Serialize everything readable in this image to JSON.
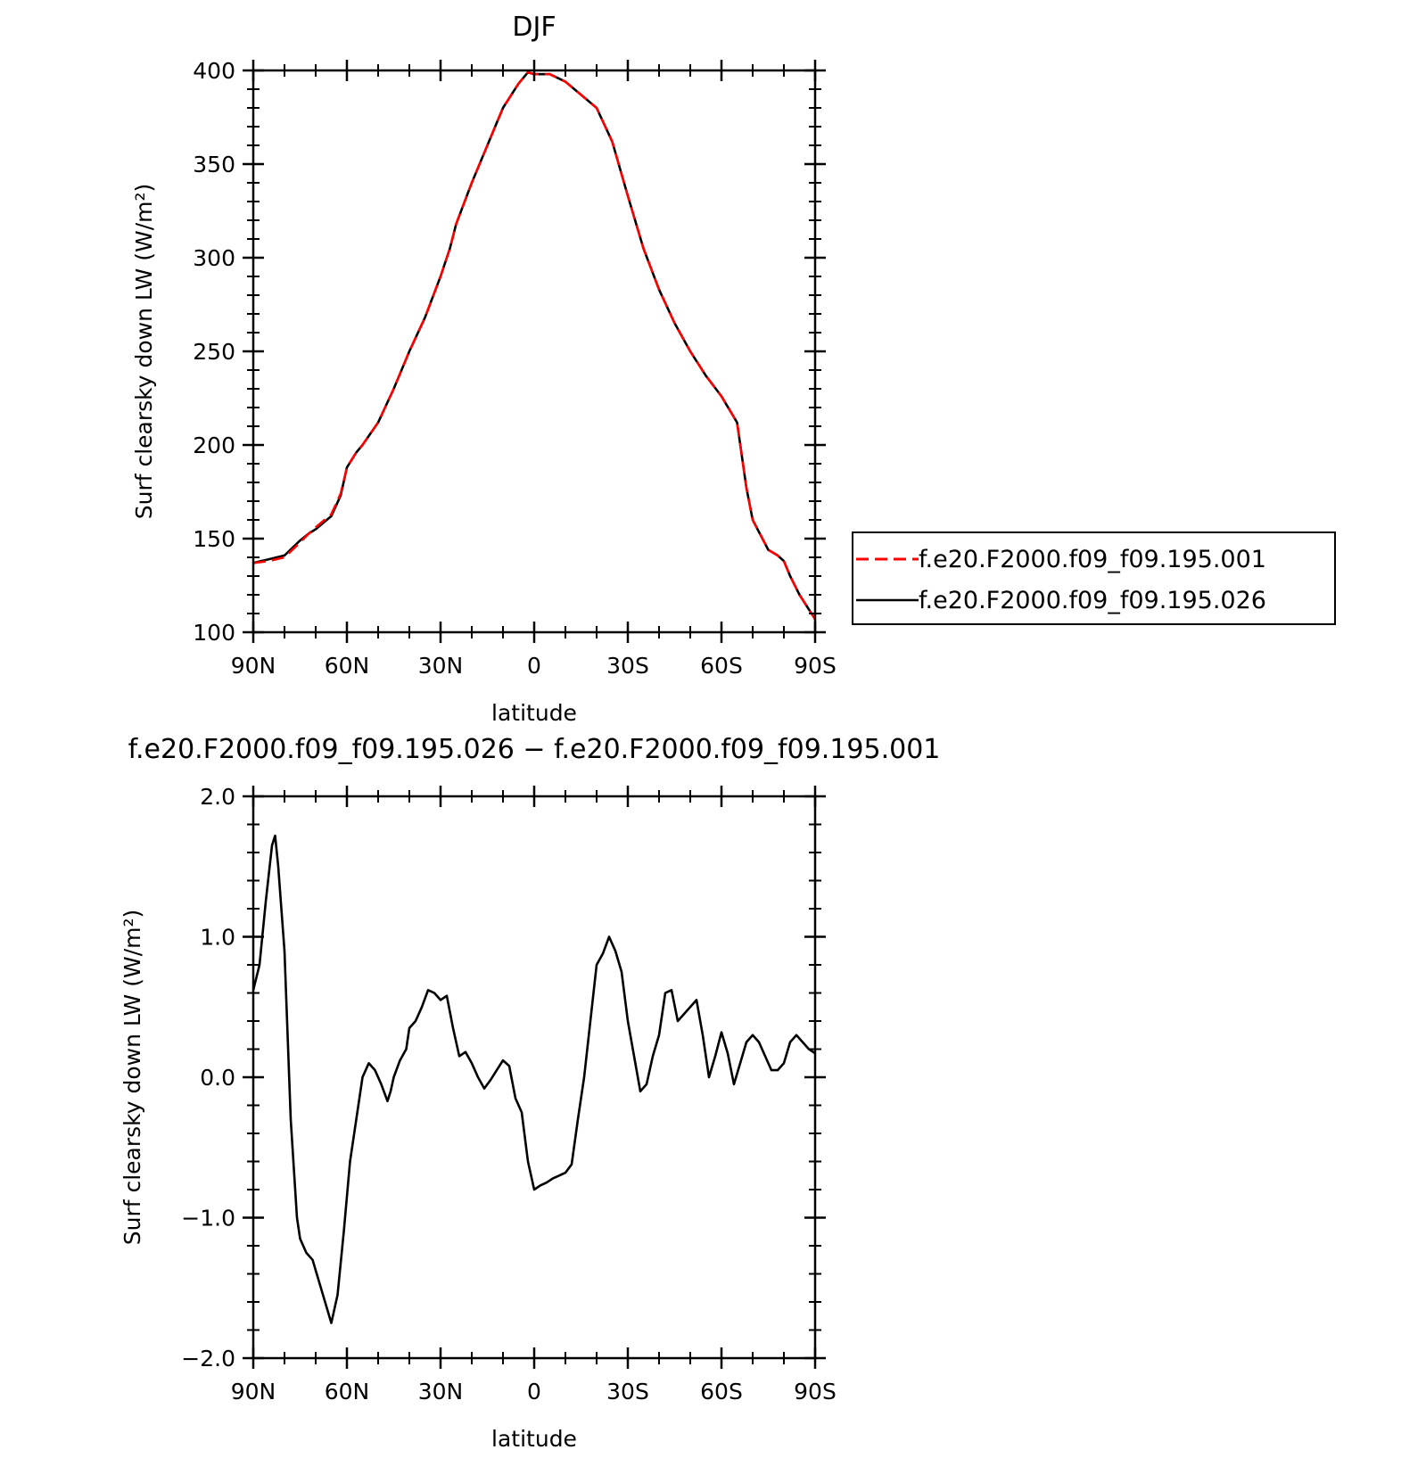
{
  "chart_data": [
    {
      "type": "line",
      "title": "DJF",
      "xlabel": "latitude",
      "ylabel": "Surf clearsky down LW (W/m²)",
      "xlim": [
        90,
        -90
      ],
      "ylim": [
        100,
        400
      ],
      "x_ticks": [
        90,
        60,
        30,
        0,
        -30,
        -60,
        -90
      ],
      "x_tick_labels": [
        "90N",
        "60N",
        "30N",
        "0",
        "30S",
        "60S",
        "90S"
      ],
      "y_ticks": [
        100,
        150,
        200,
        250,
        300,
        350,
        400
      ],
      "y_tick_labels": [
        "100",
        "150",
        "200",
        "250",
        "300",
        "350",
        "400"
      ],
      "grid": false,
      "legend_position": "right",
      "x": [
        90,
        85,
        80,
        75,
        72,
        70,
        65,
        62,
        60,
        57,
        55,
        50,
        45,
        40,
        35,
        30,
        27,
        25,
        20,
        15,
        12,
        10,
        5,
        2,
        0,
        -5,
        -10,
        -15,
        -20,
        -25,
        -30,
        -35,
        -40,
        -45,
        -50,
        -55,
        -60,
        -65,
        -68,
        -70,
        -75,
        -78,
        -80,
        -82,
        -85,
        -90
      ],
      "series": [
        {
          "name": "f.e20.F2000.f09_f09.195.001",
          "color": "#ff0000",
          "dash": "dashed",
          "values": [
            137,
            138,
            140,
            148,
            153,
            156,
            163,
            174,
            188,
            196,
            200,
            212,
            230,
            250,
            268,
            290,
            305,
            318,
            340,
            360,
            372,
            380,
            393,
            399,
            398,
            398,
            394,
            387,
            380,
            362,
            333,
            305,
            283,
            265,
            250,
            237,
            226,
            212,
            177,
            160,
            144,
            141,
            138,
            130,
            120,
            107
          ]
        },
        {
          "name": "f.e20.F2000.f09_f09.195.026",
          "color": "#000000",
          "dash": "solid",
          "values": [
            137,
            139,
            141,
            149,
            153,
            155,
            162,
            173,
            188,
            196,
            200,
            212,
            230,
            250,
            268,
            290,
            305,
            318,
            340,
            360,
            372,
            380,
            393,
            399,
            398,
            398,
            394,
            387,
            380,
            362,
            333,
            305,
            283,
            265,
            250,
            237,
            226,
            212,
            177,
            160,
            144,
            141,
            138,
            130,
            120,
            107
          ]
        }
      ]
    },
    {
      "type": "line",
      "title": "f.e20.F2000.f09_f09.195.026 − f.e20.F2000.f09_f09.195.001",
      "xlabel": "latitude",
      "ylabel": "Surf clearsky down LW (W/m²)",
      "xlim": [
        90,
        -90
      ],
      "ylim": [
        -2.0,
        2.0
      ],
      "x_ticks": [
        90,
        60,
        30,
        0,
        -30,
        -60,
        -90
      ],
      "x_tick_labels": [
        "90N",
        "60N",
        "30N",
        "0",
        "30S",
        "60S",
        "90S"
      ],
      "y_ticks": [
        -2.0,
        -1.0,
        0.0,
        1.0,
        2.0
      ],
      "y_tick_labels": [
        "−2.0",
        "−1.0",
        "0.0",
        "1.0",
        "2.0"
      ],
      "grid": false,
      "x": [
        90,
        88,
        86,
        84,
        83,
        82,
        80,
        78,
        76,
        75,
        73,
        71,
        69,
        67,
        65,
        63,
        61,
        59,
        57,
        55,
        53,
        51,
        49,
        47,
        46,
        45,
        43,
        41,
        40,
        38,
        36,
        34,
        32,
        30,
        28,
        26,
        24,
        22,
        20,
        18,
        16,
        14,
        12,
        10,
        8,
        6,
        4,
        2,
        0,
        -2,
        -4,
        -6,
        -8,
        -10,
        -12,
        -14,
        -16,
        -18,
        -20,
        -22,
        -24,
        -26,
        -28,
        -30,
        -32,
        -34,
        -36,
        -38,
        -40,
        -42,
        -44,
        -46,
        -48,
        -50,
        -52,
        -54,
        -56,
        -58,
        -60,
        -62,
        -64,
        -66,
        -68,
        -70,
        -72,
        -74,
        -76,
        -78,
        -80,
        -82,
        -84,
        -86,
        -88,
        -90
      ],
      "series": [
        {
          "name": "",
          "color": "#000000",
          "dash": "solid",
          "values": [
            0.62,
            0.8,
            1.25,
            1.65,
            1.72,
            1.5,
            0.9,
            -0.3,
            -1.0,
            -1.15,
            -1.25,
            -1.3,
            -1.45,
            -1.6,
            -1.75,
            -1.55,
            -1.1,
            -0.6,
            -0.3,
            0.0,
            0.1,
            0.05,
            -0.05,
            -0.17,
            -0.1,
            0.0,
            0.12,
            0.2,
            0.35,
            0.4,
            0.5,
            0.62,
            0.6,
            0.55,
            0.58,
            0.35,
            0.15,
            0.18,
            0.1,
            0.0,
            -0.08,
            -0.02,
            0.05,
            0.12,
            0.08,
            -0.15,
            -0.25,
            -0.6,
            -0.8,
            -0.77,
            -0.75,
            -0.72,
            -0.7,
            -0.68,
            -0.62,
            -0.3,
            0.0,
            0.4,
            0.8,
            0.88,
            1.0,
            0.9,
            0.75,
            0.4,
            0.15,
            -0.1,
            -0.05,
            0.15,
            0.3,
            0.6,
            0.62,
            0.4,
            0.45,
            0.5,
            0.55,
            0.3,
            0.0,
            0.15,
            0.32,
            0.17,
            -0.05,
            0.1,
            0.25,
            0.3,
            0.25,
            0.15,
            0.05,
            0.05,
            0.1,
            0.25,
            0.3,
            0.25,
            0.2,
            0.17
          ]
        }
      ]
    }
  ]
}
